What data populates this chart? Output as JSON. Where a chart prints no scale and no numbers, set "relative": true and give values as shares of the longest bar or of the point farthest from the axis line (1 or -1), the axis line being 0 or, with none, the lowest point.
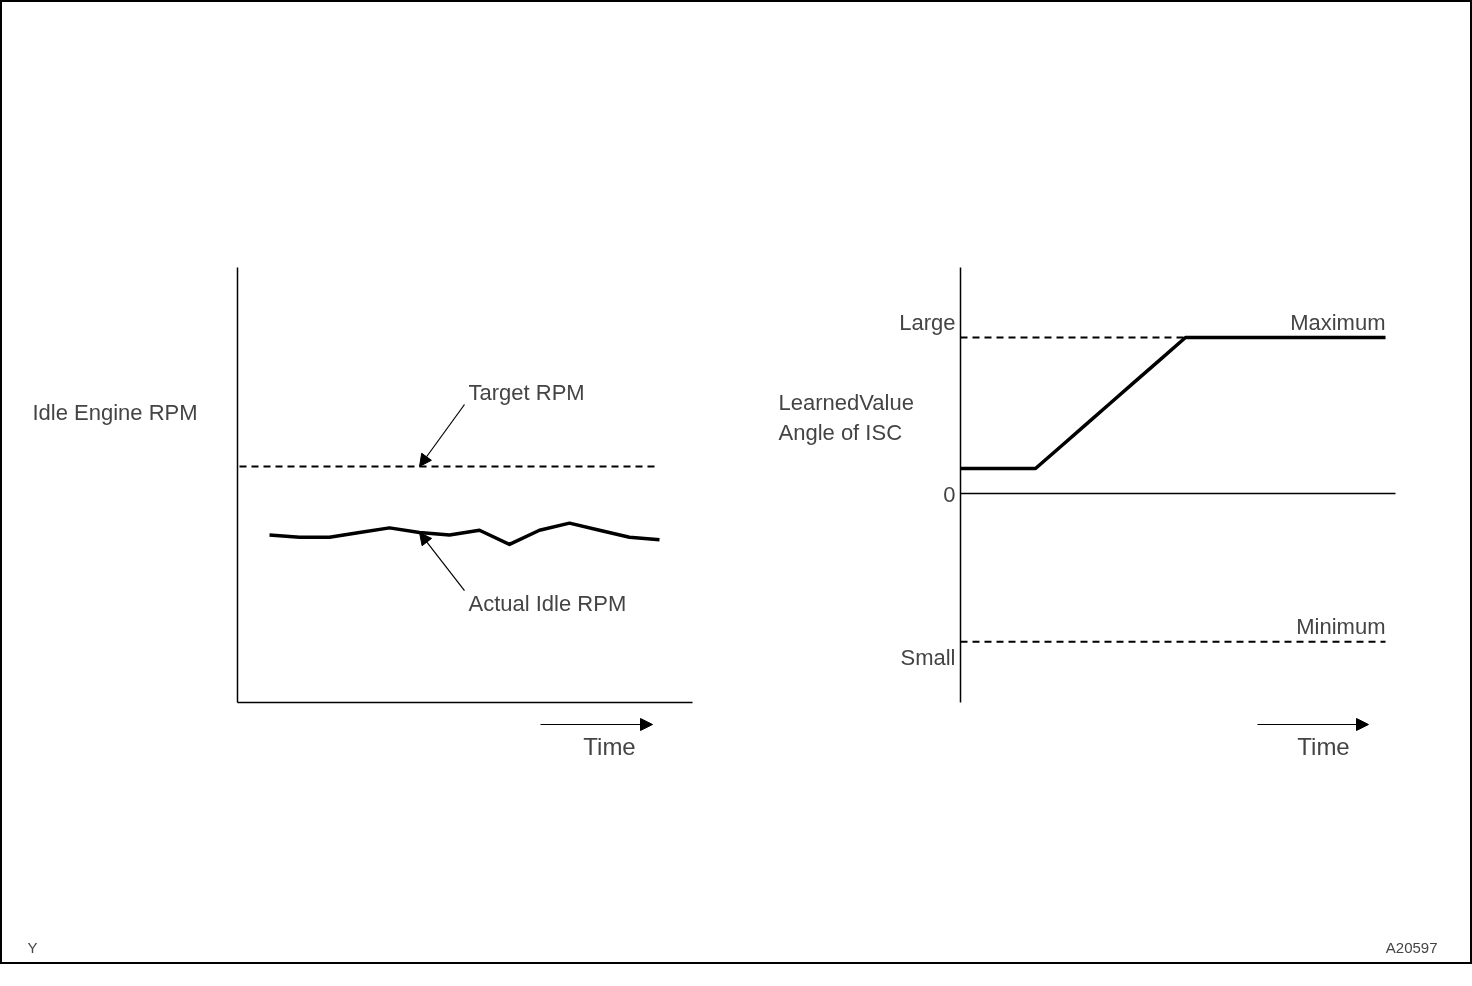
{
  "chart_data": [
    {
      "type": "line",
      "relative": true,
      "ylabel": "Idle Engine RPM",
      "xlabel": "Time",
      "categories": [
        null,
        null,
        null,
        null,
        null,
        null,
        null,
        null,
        null,
        null,
        null,
        null,
        null,
        null,
        null
      ],
      "series": [
        {
          "name": "Target RPM",
          "color": "#000000",
          "line_style": "dashed",
          "values": [
            1,
            1,
            1,
            1,
            1,
            1,
            1,
            1,
            1,
            1,
            1,
            1,
            1,
            1,
            1
          ]
        },
        {
          "name": "Actual Idle RPM",
          "color": "#000000",
          "line_style": "solid",
          "values": [
            null,
            0.71,
            0.7,
            0.7,
            0.72,
            0.74,
            0.72,
            0.71,
            0.73,
            0.67,
            0.73,
            0.76,
            0.73,
            0.7,
            0.69
          ]
        }
      ],
      "grid": false,
      "annotations": [
        "Y"
      ]
    },
    {
      "type": "line",
      "relative": true,
      "ylabel": "LearnedValue\nAngle of ISC",
      "xlabel": "Time",
      "categories": [
        null,
        null,
        null,
        null,
        null,
        null,
        null,
        null,
        null,
        null,
        null,
        null,
        null,
        null,
        null,
        null,
        null,
        null
      ],
      "series": [
        {
          "color": "#000000",
          "line_style": "dashed",
          "values": [
            1,
            1,
            1,
            1,
            1,
            1,
            1,
            1,
            1,
            1,
            null,
            null,
            null,
            null,
            null,
            null,
            null,
            null
          ]
        },
        {
          "color": "#000000",
          "line_style": "solid",
          "values": [
            0.16,
            0.16,
            0.16,
            0.16,
            0.3,
            0.44,
            0.58,
            0.72,
            0.86,
            1,
            1,
            1,
            1,
            1,
            1,
            1,
            1,
            1
          ]
        },
        {
          "color": "#000000",
          "line_style": "dashed",
          "values": [
            -0.95,
            -0.95,
            -0.95,
            -0.95,
            -0.95,
            -0.95,
            -0.95,
            -0.95,
            -0.95,
            -0.95,
            -0.95,
            -0.95,
            -0.95,
            -0.95,
            -0.95,
            -0.95,
            -0.95,
            -0.95
          ]
        }
      ],
      "grid": false,
      "annotations": [
        "Large",
        "0",
        "Small",
        {
          "text": "Maximum",
          "y": 1
        },
        {
          "text": "Minimum",
          "y": -0.95
        },
        "A20597"
      ]
    }
  ]
}
